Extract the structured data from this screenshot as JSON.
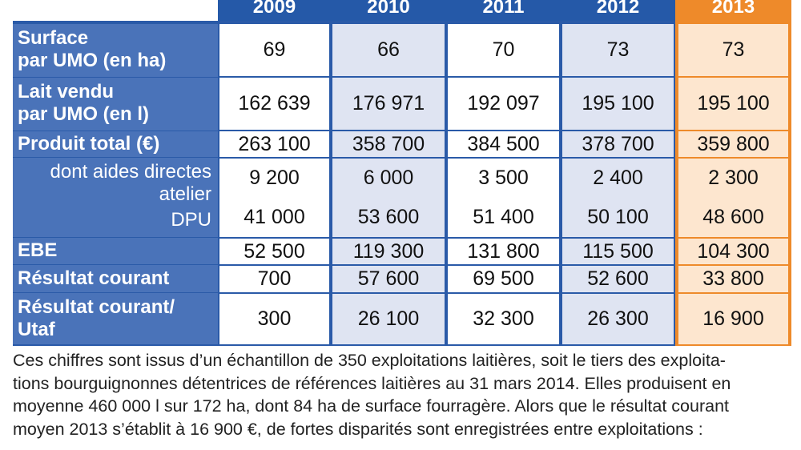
{
  "years": [
    "2009",
    "2010",
    "2011",
    "2012",
    "2013"
  ],
  "rows": [
    {
      "label_lines": [
        "Surface",
        "par UMO (en ha)"
      ],
      "values": [
        "69",
        "66",
        "70",
        "73",
        "73"
      ]
    },
    {
      "label_lines": [
        "Lait vendu",
        "par UMO (en l)"
      ],
      "values": [
        "162 639",
        "176 971",
        "192 097",
        "195 100",
        "195 100"
      ]
    },
    {
      "label_lines": [
        "Produit total (€)"
      ],
      "values": [
        "263 100",
        "358 700",
        "384 500",
        "378 700",
        "359 800"
      ]
    },
    {
      "label_lines": [
        "dont aides directes",
        "atelier"
      ],
      "values": [
        "9 200",
        "6 000",
        "3 500",
        "2 400",
        "2 300"
      ]
    },
    {
      "label_lines": [
        "DPU"
      ],
      "values": [
        "41 000",
        "53 600",
        "51 400",
        "50 100",
        "48 600"
      ]
    },
    {
      "label_lines": [
        "EBE"
      ],
      "values": [
        "52 500",
        "119 300",
        "131 800",
        "115 500",
        "104 300"
      ]
    },
    {
      "label_lines": [
        "Résultat courant"
      ],
      "values": [
        "700",
        "57 600",
        "69 500",
        "52 600",
        "33 800"
      ]
    },
    {
      "label_lines": [
        "Résultat courant/",
        "Utaf"
      ],
      "values": [
        "300",
        "26 100",
        "32 300",
        "26 300",
        "16 900"
      ]
    }
  ],
  "paragraph_lines": [
    "Ces chiffres sont issus d’un échantillon de 350 exploitations laitières, soit le tiers des exploita-",
    "tions bourguignonnes détentrices de références laitières au 31 mars 2014. Elles produisent en",
    "moyenne 460 000 l sur 172 ha, dont 84 ha de surface fourragère. Alors que le résultat courant",
    "moyen 2013 s’établit à 16 900 €, de fortes disparités sont enregistrées entre exploitations :"
  ],
  "colors": {
    "header_blue": "#2559a8",
    "label_blue": "#4a73b9",
    "light_blue": "#dfe4f2",
    "orange": "#ee8a2a",
    "light_orange": "#fde6cf"
  }
}
